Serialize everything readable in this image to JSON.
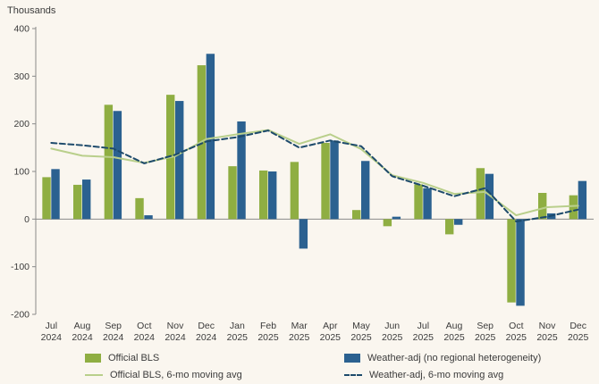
{
  "chart_data": {
    "type": "bar+line",
    "title": "",
    "ylabel": "Thousands",
    "xlabel": "",
    "ylim": [
      -200,
      400
    ],
    "yticks": [
      400,
      300,
      200,
      100,
      0,
      -100,
      -200
    ],
    "grid": false,
    "legend_position": "bottom",
    "categories": [
      {
        "month": "Jul",
        "year": "2024"
      },
      {
        "month": "Aug",
        "year": "2024"
      },
      {
        "month": "Sep",
        "year": "2024"
      },
      {
        "month": "Oct",
        "year": "2024"
      },
      {
        "month": "Nov",
        "year": "2024"
      },
      {
        "month": "Dec",
        "year": "2024"
      },
      {
        "month": "Jan",
        "year": "2025"
      },
      {
        "month": "Feb",
        "year": "2025"
      },
      {
        "month": "Mar",
        "year": "2025"
      },
      {
        "month": "Apr",
        "year": "2025"
      },
      {
        "month": "May",
        "year": "2025"
      },
      {
        "month": "Jun",
        "year": "2025"
      },
      {
        "month": "Jul",
        "year": "2025"
      },
      {
        "month": "Aug",
        "year": "2025"
      },
      {
        "month": "Sep",
        "year": "2025"
      },
      {
        "month": "Oct",
        "year": "2025"
      },
      {
        "month": "Nov",
        "year": "2025"
      },
      {
        "month": "Dec",
        "year": "2025"
      }
    ],
    "series": [
      {
        "name": "Official BLS",
        "type": "bar",
        "color": "#8fae42",
        "values": [
          88,
          72,
          240,
          44,
          261,
          323,
          111,
          102,
          120,
          160,
          19,
          -15,
          73,
          -32,
          107,
          -175,
          55,
          50
        ]
      },
      {
        "name": "Weather-adj (no regional heterogeneity)",
        "type": "bar",
        "color": "#2b6190",
        "values": [
          105,
          83,
          227,
          8,
          248,
          347,
          205,
          100,
          -62,
          165,
          122,
          5,
          65,
          -12,
          95,
          -182,
          12,
          80
        ]
      },
      {
        "name": "Official BLS, 6-mo moving avg",
        "type": "line",
        "style": "solid",
        "color": "#b9cf8b",
        "values": [
          148,
          133,
          130,
          118,
          132,
          168,
          178,
          187,
          158,
          178,
          147,
          92,
          76,
          53,
          57,
          8,
          25,
          28
        ]
      },
      {
        "name": "Weather-adj, 6-mo moving avg",
        "type": "line",
        "style": "dashed",
        "color": "#1d4a6b",
        "values": [
          160,
          155,
          148,
          117,
          135,
          163,
          172,
          186,
          150,
          165,
          153,
          90,
          70,
          48,
          65,
          -5,
          5,
          20
        ]
      }
    ],
    "axis_color": "#8a8a8a",
    "tick_text_color": "#3b3b3b"
  }
}
